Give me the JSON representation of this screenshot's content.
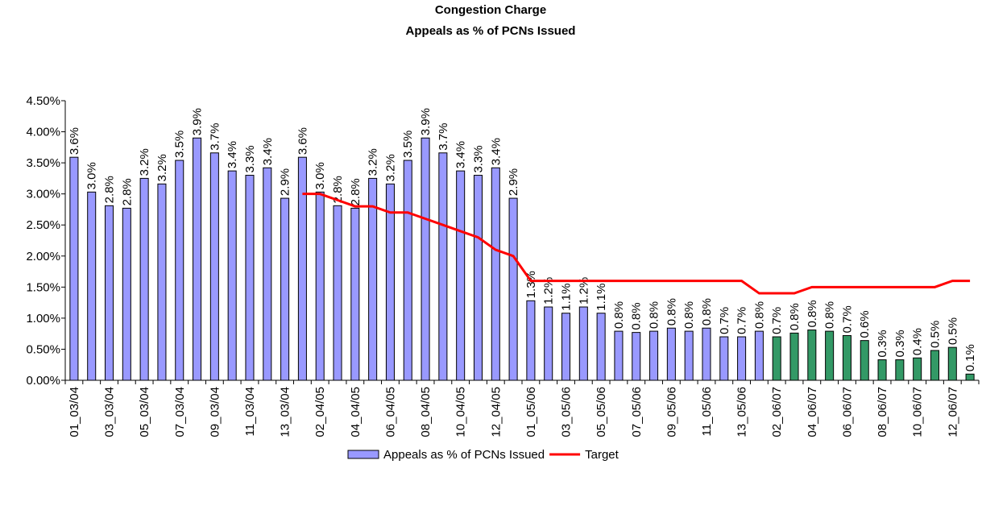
{
  "chart_data": {
    "type": "bar",
    "title": [
      "Congestion Charge",
      "Appeals as % of PCNs Issued"
    ],
    "categories": [
      "01_03/04",
      null,
      "03_03/04",
      null,
      "05_03/04",
      null,
      "07_03/04",
      null,
      "09_03/04",
      null,
      "11_03/04",
      null,
      "13_03/04",
      null,
      "02_04/05",
      null,
      "04_04/05",
      null,
      "06_04/05",
      null,
      "08_04/05",
      null,
      "10_04/05",
      null,
      "12_04/05",
      null,
      "01_05/06",
      null,
      "03_05/06",
      null,
      "05_05/06",
      null,
      "07_05/06",
      null,
      "09_05/06",
      null,
      "11_05/06",
      null,
      "13_05/06",
      null,
      "02_06/07",
      null,
      "04_06/07",
      null,
      "06_06/07",
      null,
      "08_06/07",
      null,
      "10_06/07",
      null,
      "12_06/07",
      null
    ],
    "series": [
      {
        "name": "Appeals as % of PCNs Issued",
        "type": "bar",
        "color": "#9999ff",
        "colors": [
          "#9999ff",
          "#9999ff",
          "#9999ff",
          "#9999ff",
          "#9999ff",
          "#9999ff",
          "#9999ff",
          "#9999ff",
          "#9999ff",
          "#9999ff",
          "#9999ff",
          "#9999ff",
          "#9999ff",
          "#9999ff",
          "#9999ff",
          "#9999ff",
          "#9999ff",
          "#9999ff",
          "#9999ff",
          "#9999ff",
          "#9999ff",
          "#9999ff",
          "#9999ff",
          "#9999ff",
          "#9999ff",
          "#9999ff",
          "#9999ff",
          "#9999ff",
          "#9999ff",
          "#9999ff",
          "#9999ff",
          "#9999ff",
          "#9999ff",
          "#9999ff",
          "#9999ff",
          "#9999ff",
          "#9999ff",
          "#9999ff",
          "#9999ff",
          "#9999ff",
          "#339966",
          "#339966",
          "#339966",
          "#339966",
          "#339966",
          "#339966",
          "#339966",
          "#339966",
          "#339966",
          "#339966",
          "#339966",
          "#339966"
        ],
        "values": [
          3.59,
          3.03,
          2.81,
          2.77,
          3.25,
          3.16,
          3.54,
          3.9,
          3.66,
          3.37,
          3.3,
          3.42,
          2.93,
          3.59,
          3.03,
          2.81,
          2.77,
          3.25,
          3.16,
          3.54,
          3.9,
          3.66,
          3.37,
          3.3,
          3.42,
          2.93,
          1.28,
          1.18,
          1.08,
          1.18,
          1.08,
          0.79,
          0.77,
          0.79,
          0.84,
          0.79,
          0.84,
          0.7,
          0.7,
          0.79,
          0.7,
          0.76,
          0.81,
          0.79,
          0.72,
          0.64,
          0.33,
          0.33,
          0.36,
          0.48,
          0.53,
          0.1
        ],
        "value_labels": [
          "3.6%",
          "3.0%",
          "2.8%",
          "2.8%",
          "3.2%",
          "3.2%",
          "3.5%",
          "3.9%",
          "3.7%",
          "3.4%",
          "3.3%",
          "3.4%",
          "2.9%",
          "3.6%",
          "3.0%",
          "2.8%",
          "2.8%",
          "3.2%",
          "3.2%",
          "3.5%",
          "3.9%",
          "3.7%",
          "3.4%",
          "3.3%",
          "3.4%",
          "2.9%",
          "1.3%",
          "1.2%",
          "1.1%",
          "1.2%",
          "1.1%",
          "0.8%",
          "0.8%",
          "0.8%",
          "0.8%",
          "0.8%",
          "0.8%",
          "0.7%",
          "0.7%",
          "0.8%",
          "0.7%",
          "0.8%",
          "0.8%",
          "0.8%",
          "0.7%",
          "0.6%",
          "0.3%",
          "0.3%",
          "0.4%",
          "0.5%",
          "0.5%",
          "0.1%"
        ]
      },
      {
        "name": "Target",
        "type": "line",
        "color": "#ff0000",
        "values": [
          null,
          null,
          null,
          null,
          null,
          null,
          null,
          null,
          null,
          null,
          null,
          null,
          null,
          3.0,
          3.0,
          2.9,
          2.8,
          2.8,
          2.7,
          2.7,
          2.6,
          2.5,
          2.4,
          2.3,
          2.1,
          2.0,
          1.6,
          1.6,
          1.6,
          1.6,
          1.6,
          1.6,
          1.6,
          1.6,
          1.6,
          1.6,
          1.6,
          1.6,
          1.6,
          1.4,
          1.4,
          1.4,
          1.5,
          1.5,
          1.5,
          1.5,
          1.5,
          1.5,
          1.5,
          1.5,
          1.6,
          1.6
        ]
      }
    ],
    "ylim": [
      0,
      4.5
    ],
    "yticks": [
      {
        "value": 0,
        "label": "0.00%"
      },
      {
        "value": 0.5,
        "label": "0.50%"
      },
      {
        "value": 1,
        "label": "1.00%"
      },
      {
        "value": 1.5,
        "label": "1.50%"
      },
      {
        "value": 2,
        "label": "2.00%"
      },
      {
        "value": 2.5,
        "label": "2.50%"
      },
      {
        "value": 3,
        "label": "3.00%"
      },
      {
        "value": 3.5,
        "label": "3.50%"
      },
      {
        "value": 4,
        "label": "4.00%"
      },
      {
        "value": 4.5,
        "label": "4.50%"
      }
    ],
    "grid": false,
    "legend": "bottom"
  }
}
